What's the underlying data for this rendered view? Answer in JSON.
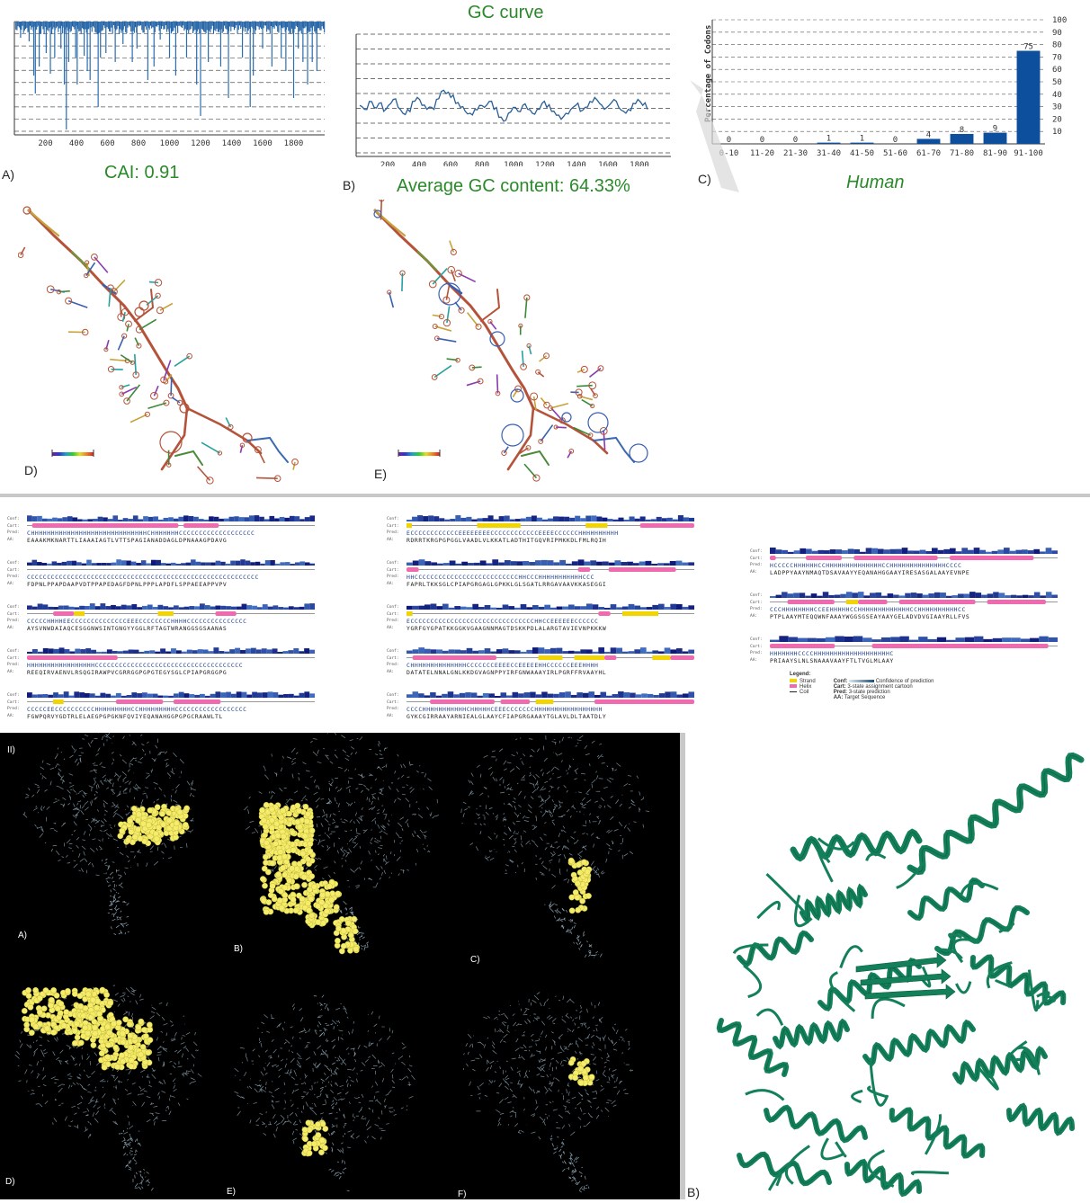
{
  "panelA": {
    "letter": "A)",
    "cai_text": "CAI: 0.91",
    "x_ticks": [
      "200",
      "400",
      "600",
      "800",
      "1000",
      "1200",
      "1400",
      "1600",
      "1800"
    ],
    "dips": [
      [
        40,
        18
      ],
      [
        95,
        22
      ],
      [
        125,
        60
      ],
      [
        135,
        80
      ],
      [
        160,
        50
      ],
      [
        205,
        35
      ],
      [
        232,
        58
      ],
      [
        260,
        40
      ],
      [
        300,
        30
      ],
      [
        322,
        70
      ],
      [
        335,
        120
      ],
      [
        350,
        45
      ],
      [
        395,
        40
      ],
      [
        405,
        70
      ],
      [
        450,
        38
      ],
      [
        470,
        55
      ],
      [
        488,
        65
      ],
      [
        540,
        95
      ],
      [
        555,
        40
      ],
      [
        590,
        35
      ],
      [
        650,
        45
      ],
      [
        700,
        25
      ],
      [
        760,
        45
      ],
      [
        790,
        30
      ],
      [
        860,
        65
      ],
      [
        900,
        50
      ],
      [
        940,
        20
      ],
      [
        1000,
        40
      ],
      [
        1040,
        60
      ],
      [
        1110,
        40
      ],
      [
        1175,
        70
      ],
      [
        1200,
        105
      ],
      [
        1250,
        45
      ],
      [
        1330,
        50
      ],
      [
        1380,
        85
      ],
      [
        1470,
        40
      ],
      [
        1520,
        95
      ],
      [
        1540,
        60
      ],
      [
        1600,
        30
      ],
      [
        1660,
        50
      ],
      [
        1720,
        40
      ],
      [
        1750,
        55
      ],
      [
        1800,
        85
      ],
      [
        1830,
        30
      ],
      [
        1860,
        45
      ],
      [
        1890,
        70
      ],
      [
        1920,
        45
      ],
      [
        1950,
        55
      ]
    ]
  },
  "panelB": {
    "letter": "B)",
    "title": "GC curve",
    "avg_text": "Average GC content: 64.33%",
    "x_ticks": [
      "200",
      "400",
      "600",
      "800",
      "1000",
      "1200",
      "1400",
      "1600",
      "1800"
    ],
    "curve": [
      64,
      62,
      66,
      63,
      65,
      61,
      64,
      67,
      63,
      60,
      62,
      66,
      68,
      64,
      62,
      63,
      67,
      71,
      70,
      68,
      65,
      63,
      61,
      60,
      62,
      64,
      63,
      66,
      62,
      58,
      56,
      60,
      63,
      61,
      64,
      62,
      60,
      62,
      65,
      63,
      61,
      59,
      57,
      60,
      62,
      64,
      61,
      63,
      66,
      68,
      65,
      62,
      64,
      67,
      63,
      61,
      62,
      65,
      67,
      64,
      62
    ]
  },
  "panelC": {
    "letter": "C)",
    "human_label": "Human",
    "y_axis_label": "Percentage of Codons",
    "y_ticks": [
      "100",
      "90",
      "80",
      "70",
      "60",
      "50",
      "40",
      "30",
      "20",
      "10"
    ],
    "categories": [
      "0-10",
      "11-20",
      "21-30",
      "31-40",
      "41-50",
      "51-60",
      "61-70",
      "71-80",
      "81-90",
      "91-100"
    ],
    "values": [
      0,
      0,
      0,
      1,
      1,
      0,
      4,
      8,
      9,
      75
    ],
    "value_labels": [
      "0",
      "0",
      "0",
      "1",
      "1",
      "0",
      "4",
      "8",
      "9",
      "75"
    ],
    "bar_color": "#0d4f9c"
  },
  "panelD": {
    "letter": "D)"
  },
  "panelE": {
    "letter": "E)"
  },
  "psipred": {
    "legend_title": "Legend:",
    "legend_items": [
      "Strand",
      "Helix",
      "Coil"
    ],
    "legend_keys": [
      [
        "Conf:",
        "Confidence of prediction"
      ],
      [
        "Cart:",
        "3-state assignment cartoon"
      ],
      [
        "Pred:",
        "3-state prediction"
      ],
      [
        "AA:",
        "Target Sequence"
      ]
    ],
    "row_labels": [
      "Conf:",
      "Cart:",
      "Pred:",
      "AA:"
    ],
    "col1": [
      {
        "pred": "CHHHHHHHHHHHHHHHHHHHHHHHHHHHHHCHHHHHHHCCCCCCCCCCCCCCCCCCC",
        "aa": "EAAAKMKNARTTLIAAAIAGTLVTTSPAGIANADDAGLDPNAAAGPDAVG"
      },
      {
        "pred": "CCCCCCCCCCCCCCCCCCCCCCCCCCCCCCCCCCCCCCCCCCCCCCCCCCCCCCCCCC",
        "aa": "FDPNLPPAPDAAPVDTPPAPEDAGFDPNLPPPLAPDFLSPPAEEAPPVPV"
      },
      {
        "pred": "CCCCCHHHHEECCCCCCCCCCCCCCEEECCCCCCCCHHHHCCCCCCCCCCCCCCC",
        "aa": "AYSVNWDAIAQCESGGNWSINTGNGYYGGLRFTAGTWRANGGSGSAANAS"
      },
      {
        "pred": "HHHHHHHHHHHHHHHHHCCCCCCCCCCCCCCCCCCCCCCCCCCCCCCCCCCCCC",
        "aa": "REEQIRVAENVLRSQGIRAWPVCGRRGGPGPGTEGYSGLCPIAPGRGGPG"
      },
      {
        "pred": "CCCCCEECCCCCCCCCCHHHHHHHHHCCHHHHHHHHHCCCCCCCCCCCCCCCCCC",
        "aa": "FGWPQRVYGDTRLELAEGPGPGKNFQVIYEQANAHGGPGPGCRAAWLTL"
      }
    ],
    "col2": [
      {
        "pred": "ECCCCCCCCCCCCEEEEEEEECCCCCCCCCCCCEEEECCCCCCHHHHHHHHHH",
        "aa": "RDRRTKRGPGPGGLVAADLVLKKATLADTHITGQVRIPMKKDLFMLRQIH"
      },
      {
        "pred": "HHCCCCCCCCCCCCCCCCCCCCCCCCCCHHCCCHHHHHHHHHHHCCC",
        "aa": "FAPRLTKKSGLCPIAPGRGAGLGPKKLGLSGATLRRGAVAAVKKASEGGI"
      },
      {
        "pred": "ECCCCCCCCCCCCCCCCCCCCCCCCCCCCCCCHHCCEEEEEECCCCCC",
        "aa": "YGRFGYGPATKKGGKVGAAGNNMAGTDSKKPDLALARGTAVIEVNPKKKW"
      },
      {
        "pred": "CHHHHHHHHHHHHHHCCCCCCCEEEECCEEEEEHHCCCCCCEEEHHHH",
        "aa": "DATATELNNALGNLKKDGVAGNPPYIRFGNWAAAYIRLPGRFFRVAAYHL"
      },
      {
        "pred": "CCCCHHHHHHHHHHHCHHHHHCEEECCCCCCCHHHHHHHHHHHHHHHHH",
        "aa": "GYKCGIRRAAYARNIEALGLAAYCFIAPGRGAAAYTGLAVLDLTAATDLY"
      }
    ],
    "col3": [
      {
        "pred": "HCCCCCHHHHHHCCHHHHHHHHHHHHHHCCHHHHHHHHHHHHHHCCCC",
        "aa": "LADPPYAAYNMAQTDSAVAAYYEQANAHGGAAYIRESASGALAAYEVNPE"
      },
      {
        "pred": "CCCHHHHHHHHCCEEHHHHHCCHHHHHHHHHHHHHCCHHHHHHHHHHCC",
        "aa": "PTPLAAYMTEQQWNFAAAYWGGSGSEAYAAYGELADVDVGIAAYRLLFVS"
      },
      {
        "pred": "HHHHHHHCCCCHHHHHHHHHHHHHHHHHHHC",
        "aa": "PRIAAYSLNLSNAAAVAAYFTLTVGLMLAAY"
      }
    ],
    "helix_color": "#f06ab0",
    "strand_color": "#f2d500",
    "conf_color": "#1a4f7a"
  },
  "section2": {
    "roman": "II)",
    "labels": [
      "A)",
      "B)",
      "C)",
      "D)",
      "E)",
      "F)"
    ],
    "cartoon_letter": "B)",
    "ribbon_color": "#13805a",
    "spot_color": "#f4ec6a",
    "mesh_color": "#8aa3b2"
  }
}
